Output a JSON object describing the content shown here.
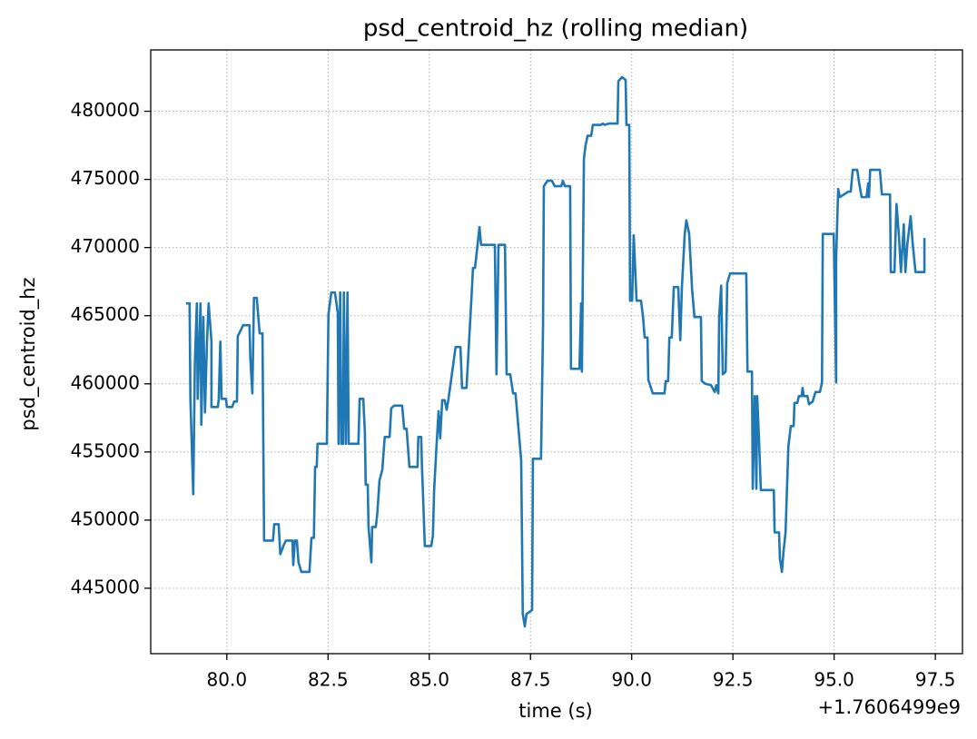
{
  "chart_data": {
    "type": "line",
    "title": "psd_centroid_hz (rolling median)",
    "x_label": "time (s)",
    "y_label": "psd_centroid_hz",
    "x_offset": "+1.7606499e9",
    "color": "#1f77b4",
    "grid": true,
    "xlim": [
      78.12,
      98.17
    ],
    "ylim": [
      440200,
      484500
    ],
    "xticks": [
      {
        "value": 80,
        "label": "80.0"
      },
      82.5,
      {
        "value": 85,
        "label": "85.0"
      },
      87.5,
      {
        "value": 90,
        "label": "90.0"
      },
      92.5,
      {
        "value": 95,
        "label": "95.0"
      },
      97.5
    ],
    "yticks": [
      445000,
      450000,
      455000,
      460000,
      465000,
      470000,
      475000,
      480000
    ],
    "x": [
      78.99,
      79.08,
      79.1,
      79.17,
      79.21,
      79.26,
      79.28,
      79.35,
      79.37,
      79.42,
      79.46,
      79.51,
      79.55,
      79.62,
      79.62,
      79.78,
      79.8,
      79.84,
      79.87,
      79.98,
      80.0,
      80.13,
      80.18,
      80.25,
      80.27,
      80.34,
      80.4,
      80.56,
      80.58,
      80.63,
      80.67,
      80.74,
      80.81,
      80.88,
      80.92,
      81.14,
      81.17,
      81.28,
      81.32,
      81.41,
      81.46,
      81.62,
      81.64,
      81.68,
      81.73,
      81.77,
      81.84,
      82.04,
      82.09,
      82.15,
      82.18,
      82.22,
      82.24,
      82.47,
      82.51,
      82.58,
      82.67,
      82.74,
      82.76,
      82.8,
      82.83,
      82.87,
      82.89,
      82.94,
      82.98,
      83.01,
      83.25,
      83.28,
      83.37,
      83.41,
      83.43,
      83.48,
      83.5,
      83.57,
      83.59,
      83.68,
      83.72,
      83.77,
      83.84,
      83.9,
      84.02,
      84.06,
      84.13,
      84.33,
      84.38,
      84.44,
      84.51,
      84.71,
      84.73,
      84.8,
      84.82,
      84.85,
      84.89,
      85.05,
      85.09,
      85.12,
      85.18,
      85.23,
      85.27,
      85.32,
      85.38,
      85.43,
      85.47,
      85.54,
      85.65,
      85.77,
      85.81,
      85.92,
      86.04,
      86.08,
      86.13,
      86.24,
      86.28,
      86.62,
      86.66,
      86.71,
      86.87,
      86.91,
      87.0,
      87.07,
      87.13,
      87.27,
      87.31,
      87.36,
      87.4,
      87.54,
      87.56,
      87.76,
      87.81,
      87.83,
      87.92,
      88.03,
      88.1,
      88.26,
      88.3,
      88.35,
      88.48,
      88.5,
      88.71,
      88.75,
      88.77,
      88.82,
      88.86,
      88.91,
      89.0,
      89.04,
      89.24,
      89.29,
      89.33,
      89.45,
      89.65,
      89.67,
      89.76,
      89.85,
      89.87,
      89.94,
      89.96,
      90.01,
      90.05,
      90.12,
      90.23,
      90.28,
      90.32,
      90.39,
      90.41,
      90.52,
      90.81,
      90.84,
      90.9,
      90.93,
      90.99,
      91.04,
      91.15,
      91.2,
      91.24,
      91.31,
      91.35,
      91.42,
      91.49,
      91.55,
      91.71,
      91.73,
      91.82,
      91.96,
      92.05,
      92.09,
      92.14,
      92.16,
      92.21,
      92.25,
      92.32,
      92.36,
      92.43,
      92.83,
      92.86,
      92.97,
      92.99,
      93.04,
      93.08,
      93.1,
      93.15,
      93.19,
      93.51,
      93.53,
      93.64,
      93.66,
      93.71,
      93.75,
      93.8,
      93.87,
      93.93,
      94.0,
      94.02,
      94.09,
      94.13,
      94.2,
      94.22,
      94.25,
      94.34,
      94.38,
      94.47,
      94.54,
      94.65,
      94.7,
      94.72,
      94.99,
      95.05,
      95.05,
      95.1,
      95.14,
      95.35,
      95.41,
      95.46,
      95.57,
      95.62,
      95.68,
      95.8,
      95.84,
      95.86,
      95.89,
      96.13,
      96.18,
      96.38,
      96.4,
      96.49,
      96.54,
      96.6,
      96.65,
      96.72,
      96.76,
      96.81,
      96.89,
      96.94,
      97.01,
      97.23,
      97.23
    ],
    "values": [
      465900,
      465900,
      458900,
      451900,
      461500,
      465900,
      458900,
      465900,
      457000,
      464900,
      457900,
      463100,
      465900,
      463100,
      458300,
      458300,
      458900,
      463100,
      458900,
      458900,
      458300,
      458300,
      458700,
      458700,
      463500,
      463900,
      464300,
      464300,
      461900,
      459300,
      466300,
      466300,
      463700,
      463700,
      448500,
      448500,
      449700,
      449700,
      447500,
      448200,
      448500,
      448500,
      446700,
      448500,
      448500,
      446900,
      446200,
      446200,
      448700,
      448700,
      453900,
      453900,
      455600,
      455600,
      465100,
      466700,
      466700,
      465200,
      455600,
      466700,
      455600,
      455600,
      466700,
      455600,
      466700,
      455600,
      455600,
      458900,
      458900,
      456400,
      452600,
      452600,
      449500,
      446900,
      449500,
      449500,
      450600,
      452900,
      453700,
      456100,
      456100,
      458200,
      458400,
      458400,
      456700,
      456700,
      453900,
      453900,
      456100,
      456100,
      453900,
      451500,
      448100,
      448100,
      448900,
      452200,
      455500,
      458000,
      456000,
      458800,
      458800,
      458100,
      458800,
      460300,
      462700,
      462700,
      459700,
      459700,
      466200,
      468500,
      468500,
      471500,
      470200,
      470200,
      460700,
      470200,
      470200,
      460700,
      460700,
      459300,
      459300,
      454400,
      443100,
      442200,
      443100,
      443400,
      454500,
      454500,
      464200,
      474500,
      474900,
      474900,
      474500,
      474500,
      474900,
      474500,
      474500,
      461100,
      461100,
      465900,
      460900,
      476500,
      477500,
      478200,
      478200,
      479000,
      479000,
      479100,
      479000,
      479100,
      479100,
      482200,
      482500,
      482300,
      479000,
      479000,
      466100,
      466100,
      470900,
      466100,
      466100,
      464900,
      463400,
      463400,
      460300,
      459300,
      459300,
      460200,
      460200,
      463400,
      463400,
      467100,
      467100,
      463200,
      467100,
      471000,
      472000,
      471000,
      467000,
      464900,
      464900,
      460200,
      460000,
      459900,
      459400,
      459900,
      459300,
      464900,
      467200,
      460700,
      460900,
      467400,
      468100,
      468100,
      460900,
      460900,
      452300,
      459100,
      452300,
      459100,
      455500,
      452200,
      452200,
      449100,
      449100,
      447200,
      446200,
      447700,
      449100,
      455400,
      456900,
      456900,
      458600,
      458600,
      459100,
      459100,
      459700,
      459100,
      459100,
      458500,
      458700,
      459400,
      459400,
      460100,
      471000,
      471000,
      460100,
      469200,
      474300,
      473700,
      474100,
      474100,
      475700,
      475700,
      474700,
      473700,
      473700,
      474700,
      473700,
      475700,
      475700,
      473900,
      473900,
      468200,
      468200,
      473200,
      470900,
      468200,
      471700,
      468200,
      470300,
      472300,
      470300,
      468200,
      468200,
      470700
    ]
  }
}
